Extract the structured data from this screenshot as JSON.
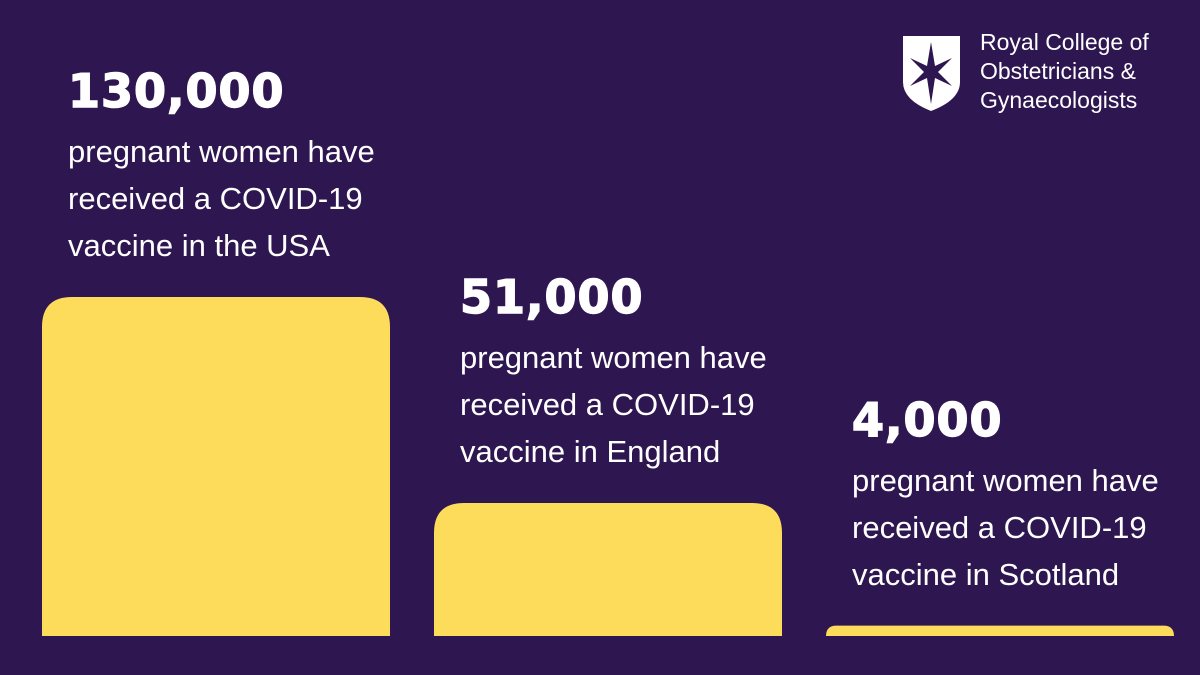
{
  "chart_data": {
    "type": "bar",
    "categories": [
      "pregnant women have received a COVID-19 vaccine in the USA",
      "pregnant women have received a COVID-19 vaccine in England",
      "pregnant women have received a COVID-19 vaccine in Scotland"
    ],
    "values": [
      130000,
      51000,
      4000
    ],
    "value_labels": [
      "130,000",
      "51,000",
      "4,000"
    ],
    "color": "#fddc5c"
  },
  "logo": {
    "lines": [
      "Royal College of",
      "Obstetricians &",
      "Gynaecologists"
    ]
  }
}
